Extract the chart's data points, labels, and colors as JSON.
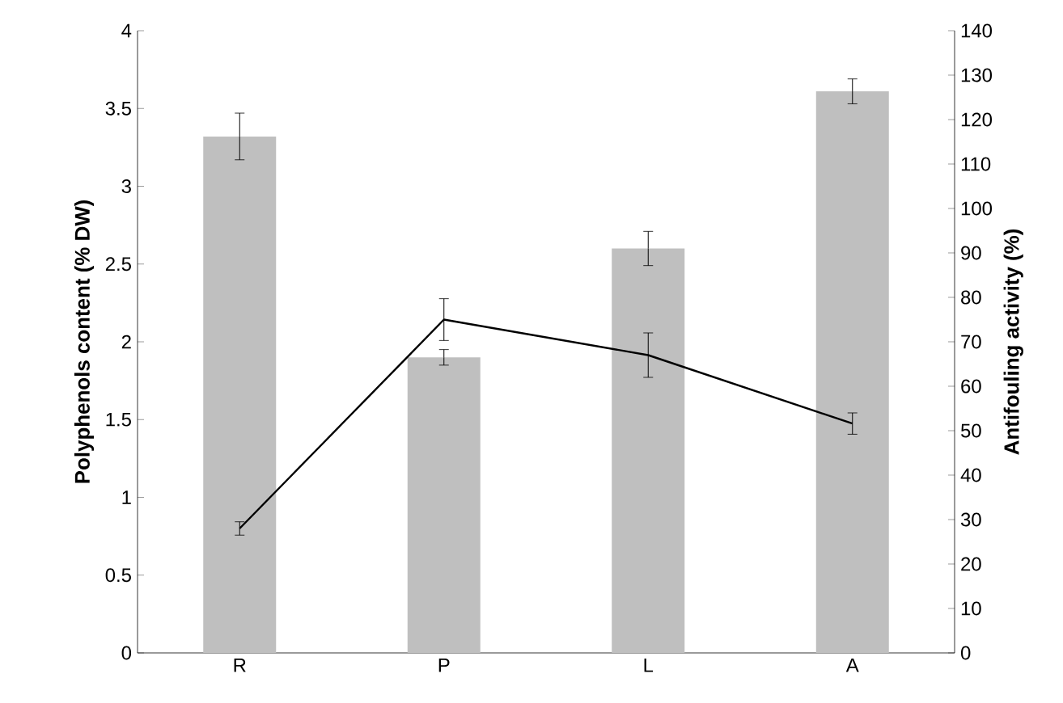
{
  "chart_data": {
    "type": "bar",
    "categories": [
      "R",
      "P",
      "L",
      "A"
    ],
    "ylabel": "Polyphenols content (% DW)",
    "y2label": "Antifouling activity (%)",
    "ylim": [
      0,
      4
    ],
    "yticks": [
      0,
      0.5,
      1,
      1.5,
      2,
      2.5,
      3,
      3.5,
      4
    ],
    "y2lim": [
      0,
      140
    ],
    "y2ticks": [
      0,
      10,
      20,
      30,
      40,
      50,
      60,
      70,
      80,
      90,
      100,
      110,
      120,
      130,
      140
    ],
    "series": [
      {
        "color": "#bfbfbf",
        "values": [
          3.32,
          1.9,
          2.6,
          3.61
        ],
        "errors": [
          0.15,
          0.05,
          0.11,
          0.08
        ]
      },
      {
        "type": "line",
        "axis": "y2",
        "color": "#000000",
        "marker": "none",
        "values": [
          28,
          75,
          67,
          51.6
        ],
        "errors": [
          1.5,
          4.7,
          5,
          2.4
        ]
      }
    ]
  }
}
